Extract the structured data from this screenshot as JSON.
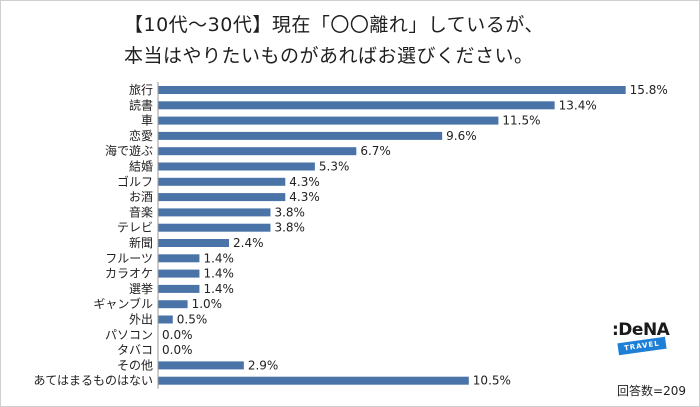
{
  "chart_data": {
    "type": "bar",
    "orientation": "horizontal",
    "title_line1": "【10代～30代】現在「〇〇離れ」しているが、",
    "title_line2": "本当はやりたいものがあればお選びください。",
    "categories": [
      "旅行",
      "読書",
      "車",
      "恋愛",
      "海で遊ぶ",
      "結婚",
      "ゴルフ",
      "お酒",
      "音楽",
      "テレビ",
      "新聞",
      "フルーツ",
      "カラオケ",
      "選挙",
      "ギャンブル",
      "外出",
      "パソコン",
      "タバコ",
      "その他",
      "あてはまるものはない"
    ],
    "values": [
      15.8,
      13.4,
      11.5,
      9.6,
      6.7,
      5.3,
      4.3,
      4.3,
      3.8,
      3.8,
      2.4,
      1.4,
      1.4,
      1.4,
      1.0,
      0.5,
      0.0,
      0.0,
      2.9,
      10.5
    ],
    "value_labels": [
      "15.8%",
      "13.4%",
      "11.5%",
      "9.6%",
      "6.7%",
      "5.3%",
      "4.3%",
      "4.3%",
      "3.8%",
      "3.8%",
      "2.4%",
      "1.4%",
      "1.4%",
      "1.4%",
      "1.0%",
      "0.5%",
      "0.0%",
      "0.0%",
      "2.9%",
      "10.5%"
    ],
    "sample_note": "回答数=209",
    "bar_color": "#4a74a8",
    "grid": false,
    "legend": "none"
  },
  "logo": {
    "word": ":DeNA",
    "tag": "TRAVEL"
  }
}
